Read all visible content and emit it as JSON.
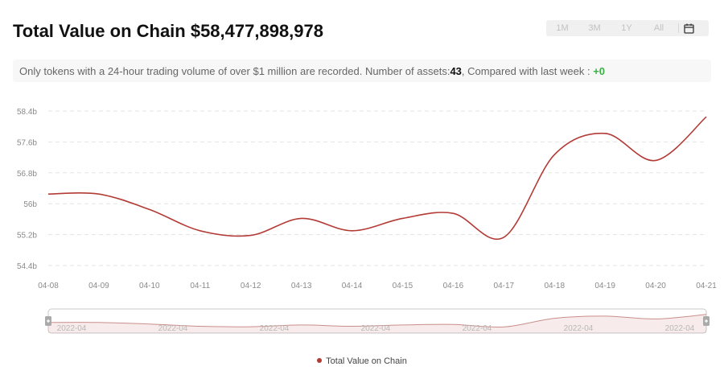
{
  "header": {
    "title": "Total Value on Chain $58,477,898,978",
    "range_options": [
      "1M",
      "3M",
      "1Y",
      "All"
    ],
    "calendar_icon": "calendar-icon"
  },
  "info": {
    "text_before": "Only tokens with a 24-hour trading volume of over $1 million are recorded. Number of assets:",
    "asset_count": "43",
    "text_middle": ", Compared with last week : ",
    "weekly_change": "+0",
    "change_color": "#3cb043"
  },
  "chart_data": {
    "type": "line",
    "x": [
      "04-08",
      "04-09",
      "04-10",
      "04-11",
      "04-12",
      "04-13",
      "04-14",
      "04-15",
      "04-16",
      "04-17",
      "04-18",
      "04-19",
      "04-20",
      "04-21"
    ],
    "series": [
      {
        "name": "Total Value on Chain",
        "color": "#b33b36",
        "values": [
          56.25,
          56.25,
          55.85,
          55.3,
          55.18,
          55.62,
          55.3,
          55.62,
          55.75,
          55.13,
          57.27,
          57.82,
          57.12,
          58.25
        ]
      }
    ],
    "ylabel": "",
    "y_ticks": [
      "58.4b",
      "57.6b",
      "56.8b",
      "56b",
      "55.2b",
      "54.4b"
    ],
    "y_tick_values": [
      58.4,
      57.6,
      56.8,
      56.0,
      55.2,
      54.4
    ],
    "ylim": [
      54.4,
      58.4
    ],
    "grid": true,
    "zoom_slider": {
      "labels": [
        "2022-04",
        "2022-04",
        "2022-04",
        "2022-04",
        "2022-04",
        "2022-04",
        "2022-04"
      ]
    },
    "legend": {
      "position": "bottom-center",
      "entries": [
        "Total Value on Chain"
      ]
    }
  }
}
